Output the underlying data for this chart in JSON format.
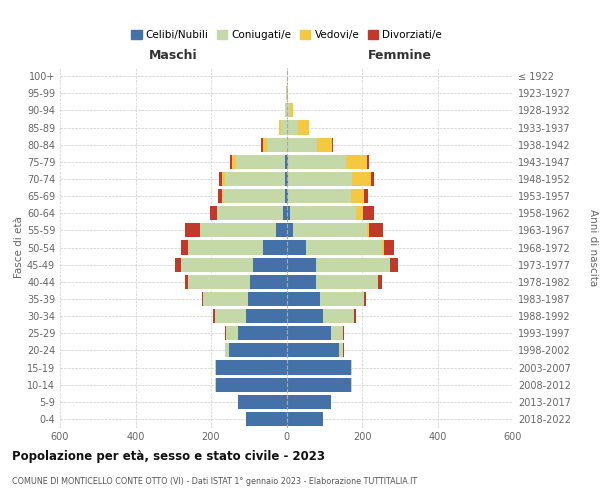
{
  "age_groups": [
    "0-4",
    "5-9",
    "10-14",
    "15-19",
    "20-24",
    "25-29",
    "30-34",
    "35-39",
    "40-44",
    "45-49",
    "50-54",
    "55-59",
    "60-64",
    "65-69",
    "70-74",
    "75-79",
    "80-84",
    "85-89",
    "90-94",
    "95-99",
    "100+"
  ],
  "birth_years": [
    "2018-2022",
    "2013-2017",
    "2008-2012",
    "2003-2007",
    "1998-2002",
    "1993-1997",
    "1988-1992",
    "1983-1987",
    "1978-1982",
    "1973-1977",
    "1968-1972",
    "1963-1967",
    "1958-1962",
    "1953-1957",
    "1948-1952",
    "1943-1947",
    "1938-1942",
    "1933-1937",
    "1928-1932",
    "1923-1927",
    "≤ 1922"
  ],
  "male": {
    "celibi": [
      108,
      128,
      188,
      188,
      152,
      128,
      108,
      102,
      98,
      88,
      62,
      28,
      8,
      5,
      4,
      3,
      0,
      0,
      0,
      0,
      0
    ],
    "coniugati": [
      0,
      0,
      2,
      2,
      10,
      32,
      82,
      118,
      162,
      192,
      198,
      202,
      175,
      162,
      158,
      132,
      52,
      15,
      5,
      2,
      0
    ],
    "vedovi": [
      0,
      0,
      0,
      0,
      0,
      0,
      0,
      0,
      0,
      0,
      0,
      0,
      0,
      5,
      8,
      10,
      10,
      5,
      0,
      0,
      0
    ],
    "divorziati": [
      0,
      0,
      0,
      0,
      2,
      3,
      5,
      5,
      10,
      15,
      20,
      38,
      20,
      10,
      8,
      5,
      5,
      0,
      0,
      0,
      0
    ]
  },
  "female": {
    "nubili": [
      98,
      118,
      172,
      172,
      138,
      118,
      98,
      88,
      78,
      78,
      52,
      18,
      8,
      5,
      4,
      3,
      0,
      0,
      0,
      0,
      0
    ],
    "coniugate": [
      0,
      0,
      2,
      2,
      12,
      32,
      82,
      118,
      165,
      195,
      200,
      195,
      175,
      165,
      170,
      155,
      80,
      30,
      8,
      2,
      0
    ],
    "vedove": [
      0,
      0,
      0,
      0,
      0,
      0,
      0,
      0,
      0,
      2,
      5,
      5,
      20,
      35,
      50,
      55,
      40,
      30,
      8,
      2,
      0
    ],
    "divorziate": [
      0,
      0,
      0,
      0,
      2,
      3,
      5,
      5,
      10,
      20,
      28,
      38,
      28,
      10,
      8,
      5,
      3,
      0,
      0,
      0,
      0
    ]
  },
  "colors": {
    "celibi": "#4472a8",
    "coniugati": "#c5d8a8",
    "vedovi": "#f5c842",
    "divorziati": "#c0392b"
  },
  "legend_labels": [
    "Celibi/Nubili",
    "Coniugati/e",
    "Vedovi/e",
    "Divorziati/e"
  ],
  "title": "Popolazione per età, sesso e stato civile - 2023",
  "subtitle": "COMUNE DI MONTICELLO CONTE OTTO (VI) - Dati ISTAT 1° gennaio 2023 - Elaborazione TUTTITALIA.IT",
  "xlabel_left": "Maschi",
  "xlabel_right": "Femmine",
  "ylabel_left": "Fasce di età",
  "ylabel_right": "Anni di nascita",
  "xlim": 600,
  "background_color": "#ffffff"
}
